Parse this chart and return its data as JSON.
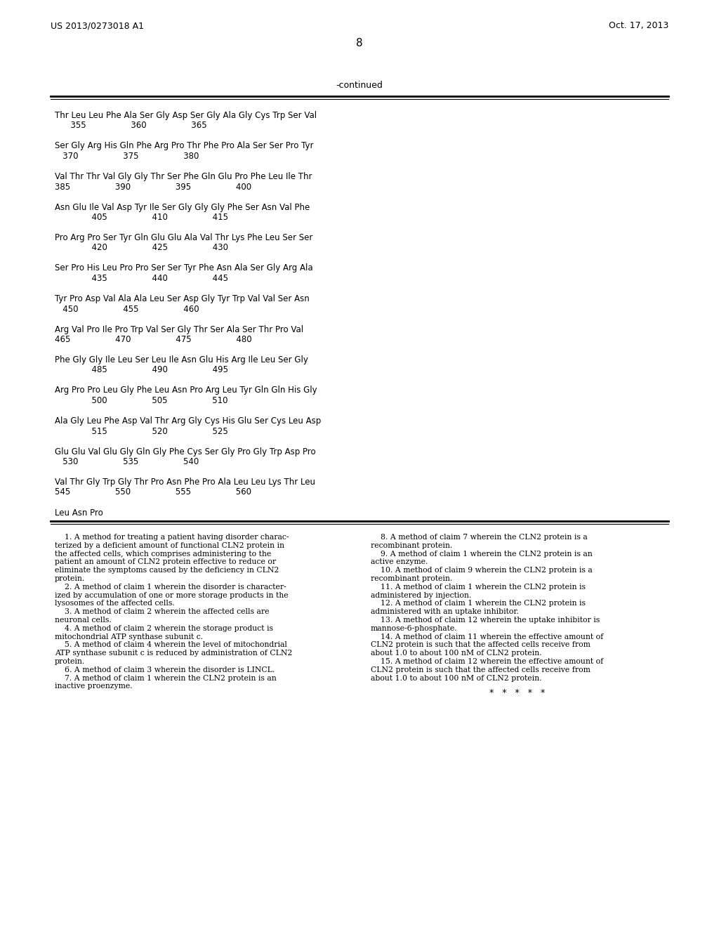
{
  "background_color": "#ffffff",
  "header_left": "US 2013/0273018 A1",
  "header_right": "Oct. 17, 2013",
  "page_number": "8",
  "continued_label": "-continued",
  "sequence_lines": [
    "Thr Leu Leu Phe Ala Ser Gly Asp Ser Gly Ala Gly Cys Trp Ser Val",
    "      355                 360                 365",
    "",
    "Ser Gly Arg His Gln Phe Arg Pro Thr Phe Pro Ala Ser Ser Pro Tyr",
    "   370                 375                 380",
    "",
    "Val Thr Thr Val Gly Gly Thr Ser Phe Gln Glu Pro Phe Leu Ile Thr",
    "385                 390                 395                 400",
    "",
    "Asn Glu Ile Val Asp Tyr Ile Ser Gly Gly Gly Phe Ser Asn Val Phe",
    "              405                 410                 415",
    "",
    "Pro Arg Pro Ser Tyr Gln Glu Glu Ala Val Thr Lys Phe Leu Ser Ser",
    "              420                 425                 430",
    "",
    "Ser Pro His Leu Pro Pro Ser Ser Tyr Phe Asn Ala Ser Gly Arg Ala",
    "              435                 440                 445",
    "",
    "Tyr Pro Asp Val Ala Ala Leu Ser Asp Gly Tyr Trp Val Val Ser Asn",
    "   450                 455                 460",
    "",
    "Arg Val Pro Ile Pro Trp Val Ser Gly Thr Ser Ala Ser Thr Pro Val",
    "465                 470                 475                 480",
    "",
    "Phe Gly Gly Ile Leu Ser Leu Ile Asn Glu His Arg Ile Leu Ser Gly",
    "              485                 490                 495",
    "",
    "Arg Pro Pro Leu Gly Phe Leu Asn Pro Arg Leu Tyr Gln Gln His Gly",
    "              500                 505                 510",
    "",
    "Ala Gly Leu Phe Asp Val Thr Arg Gly Cys His Glu Ser Cys Leu Asp",
    "              515                 520                 525",
    "",
    "Glu Glu Val Glu Gly Gln Gly Phe Cys Ser Gly Pro Gly Trp Asp Pro",
    "   530                 535                 540",
    "",
    "Val Thr Gly Trp Gly Thr Pro Asn Phe Pro Ala Leu Leu Lys Thr Leu",
    "545                 550                 555                 560",
    "",
    "Leu Asn Pro"
  ],
  "claims_left_paragraphs": [
    [
      "    ",
      "1",
      ". A method for treating a patient having disorder charac-\nterized by a deficient amount of functional CLN2 protein in\nthe affected cells, which comprises administering to the\npatient an amount of CLN2 protein effective to reduce or\neliminate the symptoms caused by the deficiency in CLN2\nprotein."
    ],
    [
      "    ",
      "2",
      ". A method of claim ",
      "1",
      " wherein the disorder is character-\nized by accumulation of one or more storage products in the\nlysosomes of the affected cells."
    ],
    [
      "    ",
      "3",
      ". A method of claim ",
      "2",
      " wherein the affected cells are\nneuronal cells."
    ],
    [
      "    ",
      "4",
      ". A method of claim ",
      "2",
      " wherein the storage product is\nmitochondrial ATP synthase subunit c."
    ],
    [
      "    ",
      "5",
      ". A method of claim ",
      "4",
      " wherein the level of mitochondrial\nATP synthase subunit c is reduced by administration of CLN2\nprotein."
    ],
    [
      "    ",
      "6",
      ". A method of claim ",
      "3",
      " wherein the disorder is LINCL."
    ],
    [
      "    ",
      "7",
      ". A method of claim ",
      "1",
      " wherein the CLN2 protein is an\ninactive proenzyme."
    ]
  ],
  "claims_right_paragraphs": [
    [
      "    ",
      "8",
      ". A method of claim ",
      "7",
      " wherein the CLN2 protein is a\nrecombinant protein."
    ],
    [
      "    ",
      "9",
      ". A method of claim ",
      "1",
      " wherein the CLN2 protein is an\nactive enzyme."
    ],
    [
      "    ",
      "10",
      ". A method of claim ",
      "9",
      " wherein the CLN2 protein is a\nrecombinant protein."
    ],
    [
      "    ",
      "11",
      ". A method of claim ",
      "1",
      " wherein the CLN2 protein is\nadministered by injection."
    ],
    [
      "    ",
      "12",
      ". A method of claim ",
      "1",
      " wherein the CLN2 protein is\nadministered with an uptake inhibitor."
    ],
    [
      "    ",
      "13",
      ". A method of claim ",
      "12",
      " wherein the uptake inhibitor is\nmannose-6-phosphate."
    ],
    [
      "    ",
      "14",
      ". A method of claim ",
      "11",
      " wherein the effective amount of\nCLN2 protein is such that the affected cells receive from\nabout 1.0 to about 100 nM of CLN2 protein."
    ],
    [
      "    ",
      "15",
      ". A method of claim ",
      "12",
      " wherein the effective amount of\nCLN2 protein is such that the affected cells receive from\nabout 1.0 to about 100 nM of CLN2 protein."
    ]
  ],
  "stars_line": "*   *   *   *   *"
}
